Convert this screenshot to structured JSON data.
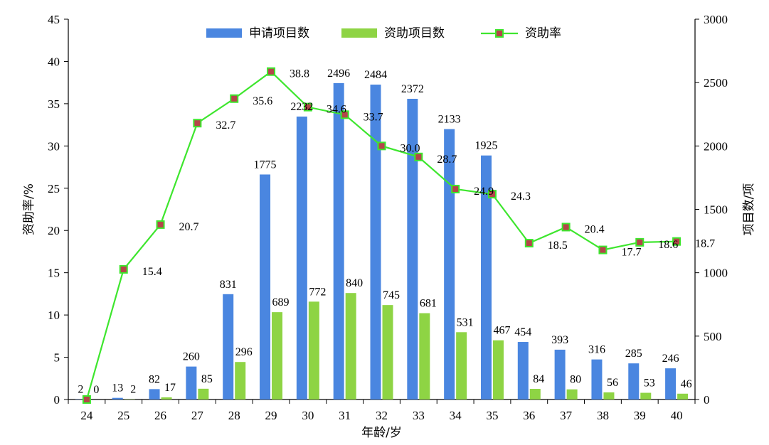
{
  "chart_data": {
    "type": "bar",
    "categories": [
      "24",
      "25",
      "26",
      "27",
      "28",
      "29",
      "30",
      "31",
      "32",
      "33",
      "34",
      "35",
      "36",
      "37",
      "38",
      "39",
      "40"
    ],
    "xlabel": "年龄/岁",
    "ylabel_left": "资助率/%",
    "ylabel_right": "项目数/项",
    "ylim_left": [
      0,
      45
    ],
    "ylim_right": [
      0,
      3000
    ],
    "yticks_left": [
      "0",
      "5",
      "10",
      "15",
      "20",
      "25",
      "30",
      "35",
      "40",
      "45"
    ],
    "yticks_right": [
      "0",
      "500",
      "1000",
      "1500",
      "2000",
      "2500",
      "3000"
    ],
    "legend_position": "top-center",
    "grid": false,
    "series": [
      {
        "name": "申请项目数",
        "type": "bar",
        "axis": "right",
        "color": "#4A86E0",
        "values": [
          2,
          13,
          82,
          260,
          831,
          1775,
          2232,
          2496,
          2484,
          2372,
          2133,
          1925,
          454,
          393,
          316,
          285,
          246
        ]
      },
      {
        "name": "资助项目数",
        "type": "bar",
        "axis": "right",
        "color": "#8ED444",
        "values": [
          0,
          2,
          17,
          85,
          296,
          689,
          772,
          840,
          745,
          681,
          531,
          467,
          84,
          80,
          56,
          53,
          46
        ]
      },
      {
        "name": "资助率",
        "type": "line",
        "axis": "left",
        "color": "#3EE62E",
        "marker_color": "#B5454A",
        "values": [
          0,
          15.4,
          20.7,
          32.7,
          35.6,
          38.8,
          34.6,
          33.7,
          30.0,
          28.7,
          24.9,
          24.3,
          18.5,
          20.4,
          17.7,
          18.6,
          18.7
        ],
        "labels": [
          "",
          "15.4",
          "20.7",
          "32.7",
          "35.6",
          "38.8",
          "34.6",
          "33.7",
          "30.0",
          "28.7",
          "24.9",
          "24.3",
          "18.5",
          "20.4",
          "17.7",
          "18.6",
          "18.7"
        ]
      }
    ]
  }
}
